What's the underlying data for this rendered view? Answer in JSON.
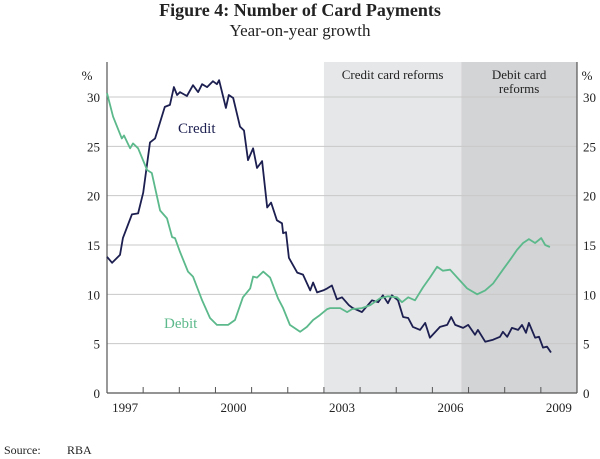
{
  "chart_data": {
    "type": "line",
    "title": "Figure 4: Number of Card Payments",
    "subtitle": "Year-on-year growth",
    "ylabel_left": "%",
    "ylabel_right": "%",
    "ylim": [
      0,
      30
    ],
    "yticks": [
      0,
      5,
      10,
      15,
      20,
      25,
      30
    ],
    "xlim": [
      1997,
      2010
    ],
    "xtick_labels": [
      "1997",
      "2000",
      "2003",
      "2006",
      "2009"
    ],
    "grid": true,
    "shaded_regions": [
      {
        "label": "Credit card reforms",
        "start": 2003.0,
        "end": 2006.8,
        "color": "#e6e7e9"
      },
      {
        "label_line1": "Debit card",
        "label_line2": "reforms",
        "start": 2006.8,
        "end": 2010.0,
        "color": "#d3d4d6"
      }
    ],
    "series": [
      {
        "name": "Credit",
        "color": "#1c1f50",
        "x": [
          1997.0,
          1997.14,
          1997.36,
          1997.44,
          1997.69,
          1997.86,
          1998.0,
          1998.19,
          1998.33,
          1998.6,
          1998.74,
          1998.85,
          1998.94,
          1999.02,
          1999.21,
          1999.38,
          1999.52,
          1999.63,
          1999.77,
          1999.93,
          2000.04,
          2000.1,
          2000.29,
          2000.37,
          2000.49,
          2000.68,
          2000.79,
          2000.9,
          2001.04,
          2001.15,
          2001.29,
          2001.43,
          2001.54,
          2001.7,
          2001.84,
          2001.87,
          2001.95,
          2002.03,
          2002.26,
          2002.42,
          2002.62,
          2002.7,
          2002.81,
          2002.98,
          2003.09,
          2003.22,
          2003.36,
          2003.5,
          2003.69,
          2003.8,
          2004.05,
          2004.33,
          2004.5,
          2004.63,
          2004.77,
          2004.88,
          2005.05,
          2005.19,
          2005.33,
          2005.46,
          2005.66,
          2005.8,
          2005.93,
          2006.21,
          2006.41,
          2006.52,
          2006.63,
          2006.85,
          2006.99,
          2007.18,
          2007.26,
          2007.46,
          2007.68,
          2007.87,
          2007.95,
          2008.07,
          2008.2,
          2008.37,
          2008.48,
          2008.59,
          2008.67,
          2008.84,
          2008.95,
          2009.06,
          2009.17,
          2009.28
        ],
        "values": [
          13.8,
          13.2,
          14.0,
          15.7,
          18.1,
          18.2,
          20.3,
          25.4,
          25.8,
          29.0,
          29.2,
          31.0,
          30.2,
          30.5,
          30.1,
          31.2,
          30.5,
          31.3,
          31.0,
          31.6,
          31.3,
          31.7,
          28.9,
          30.2,
          29.9,
          27.0,
          26.6,
          23.6,
          24.8,
          22.8,
          23.5,
          18.8,
          19.3,
          17.5,
          17.2,
          16.2,
          16.3,
          13.7,
          12.2,
          12.0,
          10.4,
          11.2,
          10.2,
          10.4,
          10.6,
          10.9,
          9.5,
          9.7,
          8.9,
          8.6,
          8.2,
          9.4,
          9.2,
          9.9,
          9.1,
          9.9,
          9.4,
          7.7,
          7.6,
          6.7,
          6.4,
          7.1,
          5.6,
          6.7,
          6.9,
          7.7,
          6.9,
          6.6,
          6.9,
          5.9,
          6.4,
          5.2,
          5.4,
          5.7,
          6.2,
          5.7,
          6.6,
          6.4,
          6.9,
          6.1,
          7.1,
          5.6,
          5.7,
          4.6,
          4.7,
          4.1
        ]
      },
      {
        "name": "Debit",
        "color": "#5cb98b",
        "x": [
          1997.0,
          1997.17,
          1997.41,
          1997.47,
          1997.64,
          1997.72,
          1997.86,
          1998.11,
          1998.24,
          1998.47,
          1998.66,
          1998.8,
          1998.88,
          1999.02,
          1999.24,
          1999.38,
          1999.63,
          1999.85,
          2000.04,
          2000.35,
          2000.54,
          2000.76,
          2000.96,
          2001.04,
          2001.15,
          2001.32,
          2001.51,
          2001.73,
          2001.87,
          2002.06,
          2002.34,
          2002.53,
          2002.7,
          2002.89,
          2003.09,
          2003.17,
          2003.45,
          2003.64,
          2003.78,
          2004.05,
          2004.28,
          2004.55,
          2004.77,
          2005.02,
          2005.16,
          2005.33,
          2005.52,
          2005.74,
          2005.93,
          2006.13,
          2006.29,
          2006.49,
          2006.76,
          2006.96,
          2007.24,
          2007.46,
          2007.68,
          2007.95,
          2008.15,
          2008.34,
          2008.51,
          2008.67,
          2008.84,
          2009.01,
          2009.12,
          2009.25
        ],
        "values": [
          30.4,
          28.0,
          25.8,
          26.1,
          24.8,
          25.3,
          24.8,
          22.6,
          22.3,
          18.5,
          17.7,
          15.8,
          15.7,
          14.3,
          12.3,
          11.8,
          9.4,
          7.6,
          6.9,
          6.9,
          7.4,
          9.7,
          10.6,
          11.8,
          11.7,
          12.3,
          11.7,
          9.6,
          8.6,
          6.9,
          6.2,
          6.7,
          7.4,
          7.9,
          8.5,
          8.6,
          8.6,
          8.2,
          8.5,
          8.6,
          8.9,
          9.6,
          9.8,
          9.7,
          9.2,
          9.7,
          9.4,
          10.7,
          11.7,
          12.8,
          12.4,
          12.5,
          11.4,
          10.6,
          10.0,
          10.4,
          11.1,
          12.5,
          13.5,
          14.5,
          15.2,
          15.6,
          15.2,
          15.7,
          15.0,
          14.8
        ]
      }
    ],
    "source_label": "Source:",
    "source_value": "RBA"
  }
}
